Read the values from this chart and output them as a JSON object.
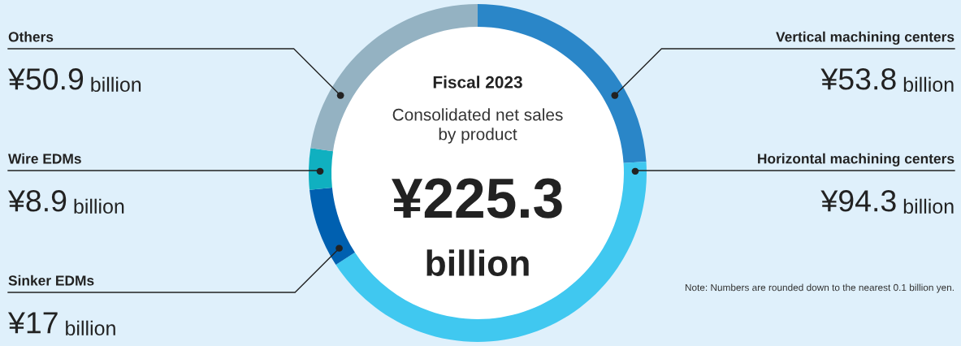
{
  "chart_data": {
    "type": "donut",
    "title": "Fiscal 2023",
    "subtitle": "Consolidated net sales\nby product",
    "categories": [
      "Vertical machining centers",
      "Horizontal machining centers",
      "Sinker EDMs",
      "Wire EDMs",
      "Others"
    ],
    "values": [
      53.8,
      94.3,
      17,
      8.9,
      50.9
    ],
    "colors": [
      "#2a86c8",
      "#40c8f0",
      "#0060b0",
      "#10b0c0",
      "#94b2c2"
    ],
    "value_labels": [
      "¥53.8 billion",
      "¥94.3 billion",
      "¥17 billion",
      "¥8.9 billion",
      "¥50.9 billion"
    ],
    "annotations": [
      "¥225.3\nbillion",
      "Note: Numbers are rounded down to the nearest 0.1 billion yen."
    ],
    "legend": false
  }
}
